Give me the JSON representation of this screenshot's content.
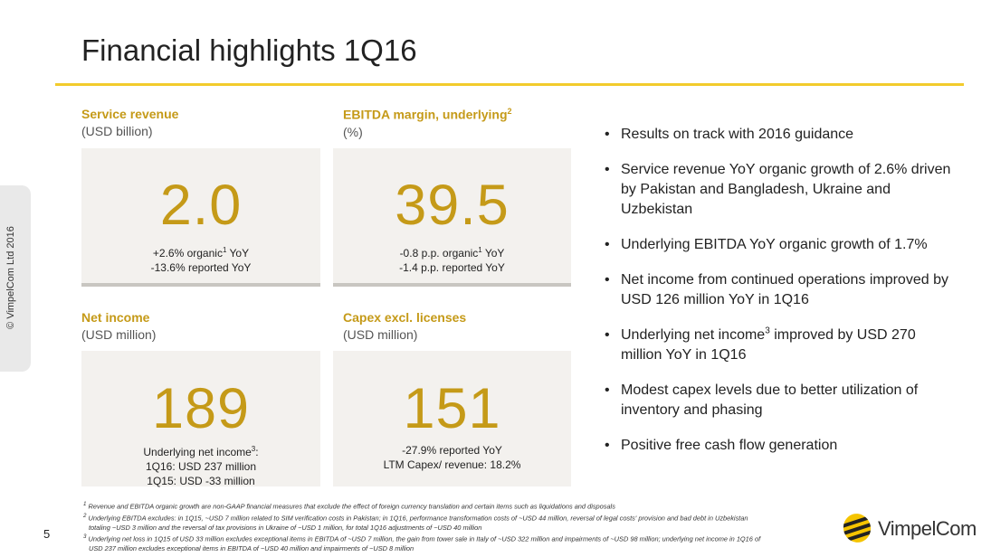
{
  "slide": {
    "title": "Financial highlights 1Q16",
    "page_number": "5",
    "copyright": "© VimpelCom Ltd 2016"
  },
  "kpis": {
    "service_revenue": {
      "label": "Service revenue",
      "unit": "(USD billion)",
      "value": "2.0",
      "note1_a": "+2.6% organic",
      "note1_sup": "1",
      "note1_b": " YoY",
      "note2": "-13.6% reported YoY"
    },
    "ebitda": {
      "label": "EBITDA margin, underlying",
      "label_sup": "2",
      "unit": "(%)",
      "value": "39.5",
      "note1_a": "-0.8 p.p. organic",
      "note1_sup": "1",
      "note1_b": " YoY",
      "note2": "-1.4 p.p. reported YoY"
    },
    "net_income": {
      "label": "Net income",
      "unit": "(USD million)",
      "value": "189",
      "note1_a": "Underlying net income",
      "note1_sup": "3",
      "note1_b": ":",
      "note2": "1Q16: USD 237 million",
      "note3": "1Q15: USD -33 million"
    },
    "capex": {
      "label": "Capex excl. licenses",
      "unit": "(USD million)",
      "value": "151",
      "note1": "-27.9% reported YoY",
      "note2": "LTM Capex/ revenue: 18.2%"
    }
  },
  "bullets": [
    "Results on track with 2016 guidance",
    "Service revenue YoY organic growth of 2.6% driven by Pakistan and Bangladesh, Ukraine and Uzbekistan",
    "Underlying EBITDA YoY organic growth of 1.7%",
    "Net income from continued operations improved by USD 126 million YoY in 1Q16",
    {
      "before": "Underlying net income",
      "sup": "3",
      "after": " improved by USD 270 million YoY in 1Q16"
    },
    "Modest capex levels due to better utilization of inventory and phasing",
    "Positive free cash flow generation"
  ],
  "footnotes": {
    "f1_num": "1",
    "f1": " Revenue and EBITDA organic growth are non-GAAP financial measures that exclude the effect of foreign currency translation and certain items such as liquidations and disposals",
    "f2_num": "2",
    "f2": " Underlying EBITDA excludes: in 1Q15, ~USD 7 million related to SIM verification costs in Pakistan; in 1Q16, performance transformation costs of ~USD 44 million, reversal of legal costs' provision and bad debt in Uzbekistan totaling ~USD 3 million and the reversal of tax provisions in Ukraine of ~USD 1 million, for total 1Q16 adjustments of ~USD 40 million",
    "f3_num": "3",
    "f3": " Underlying net loss in 1Q15 of USD 33 million excludes exceptional items in EBITDA of ~USD 7 million, the gain from tower sale in Italy of ~USD 322 million and impairments of ~USD 98 million; underlying net income in 1Q16 of USD 237 million excludes exceptional items in EBITDA of ~USD 40 million and impairments of ~USD 8 million"
  },
  "logo": {
    "text": "VimpelCom"
  },
  "colors": {
    "accent": "#c59a18",
    "rule": "#f2cb2c",
    "box": "#f3f1ee"
  }
}
